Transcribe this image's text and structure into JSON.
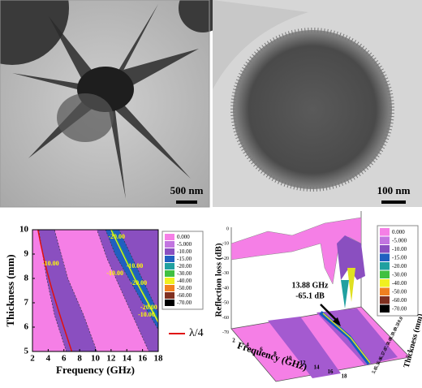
{
  "panels": [
    {
      "scale_bar": "500 nm"
    },
    {
      "scale_bar": "100 nm"
    },
    {
      "x_label": "Frequency (GHz)",
      "y_label": "Thickness (mm)",
      "xlim": [
        2,
        18
      ],
      "ylim": [
        5,
        10
      ],
      "xticks": [
        2,
        4,
        6,
        8,
        10,
        12,
        14,
        16,
        18
      ],
      "yticks": [
        5,
        6,
        7,
        8,
        9,
        10
      ],
      "contour_labels": [
        "-10.00",
        "-10.00",
        "-10.00",
        "-10.00",
        "-20.00",
        "-20.00",
        "-20.00"
      ],
      "legend": [
        "0.000",
        "-5.000",
        "-10.00",
        "-15.00",
        "-20.00",
        "-30.00",
        "-40.00",
        "-50.00",
        "-60.00",
        "-70.00"
      ],
      "line_legend": "λ/4"
    },
    {
      "z_label": "Reflection loss (dB)",
      "x_label": "Frequency (GHz)",
      "y_label": "Thickness (mm)",
      "zticks": [
        0,
        -10,
        -20,
        -30,
        -40,
        -50,
        -60,
        -70
      ],
      "xticks": [
        2,
        4,
        6,
        8,
        10,
        12,
        14,
        16,
        18
      ],
      "yticks": [
        "10.0",
        "9.5",
        "9.0",
        "8.5",
        "8.0",
        "7.5",
        "7.0",
        "6.5",
        "6.0",
        "5.5",
        "5.0"
      ],
      "annotation": [
        "13.88 GHz",
        "-65.1 dB"
      ],
      "legend": [
        "0.000",
        "-5.000",
        "-10.00",
        "-15.00",
        "-20.00",
        "-30.00",
        "-40.00",
        "-50.00",
        "-60.00",
        "-70.00"
      ]
    }
  ]
}
